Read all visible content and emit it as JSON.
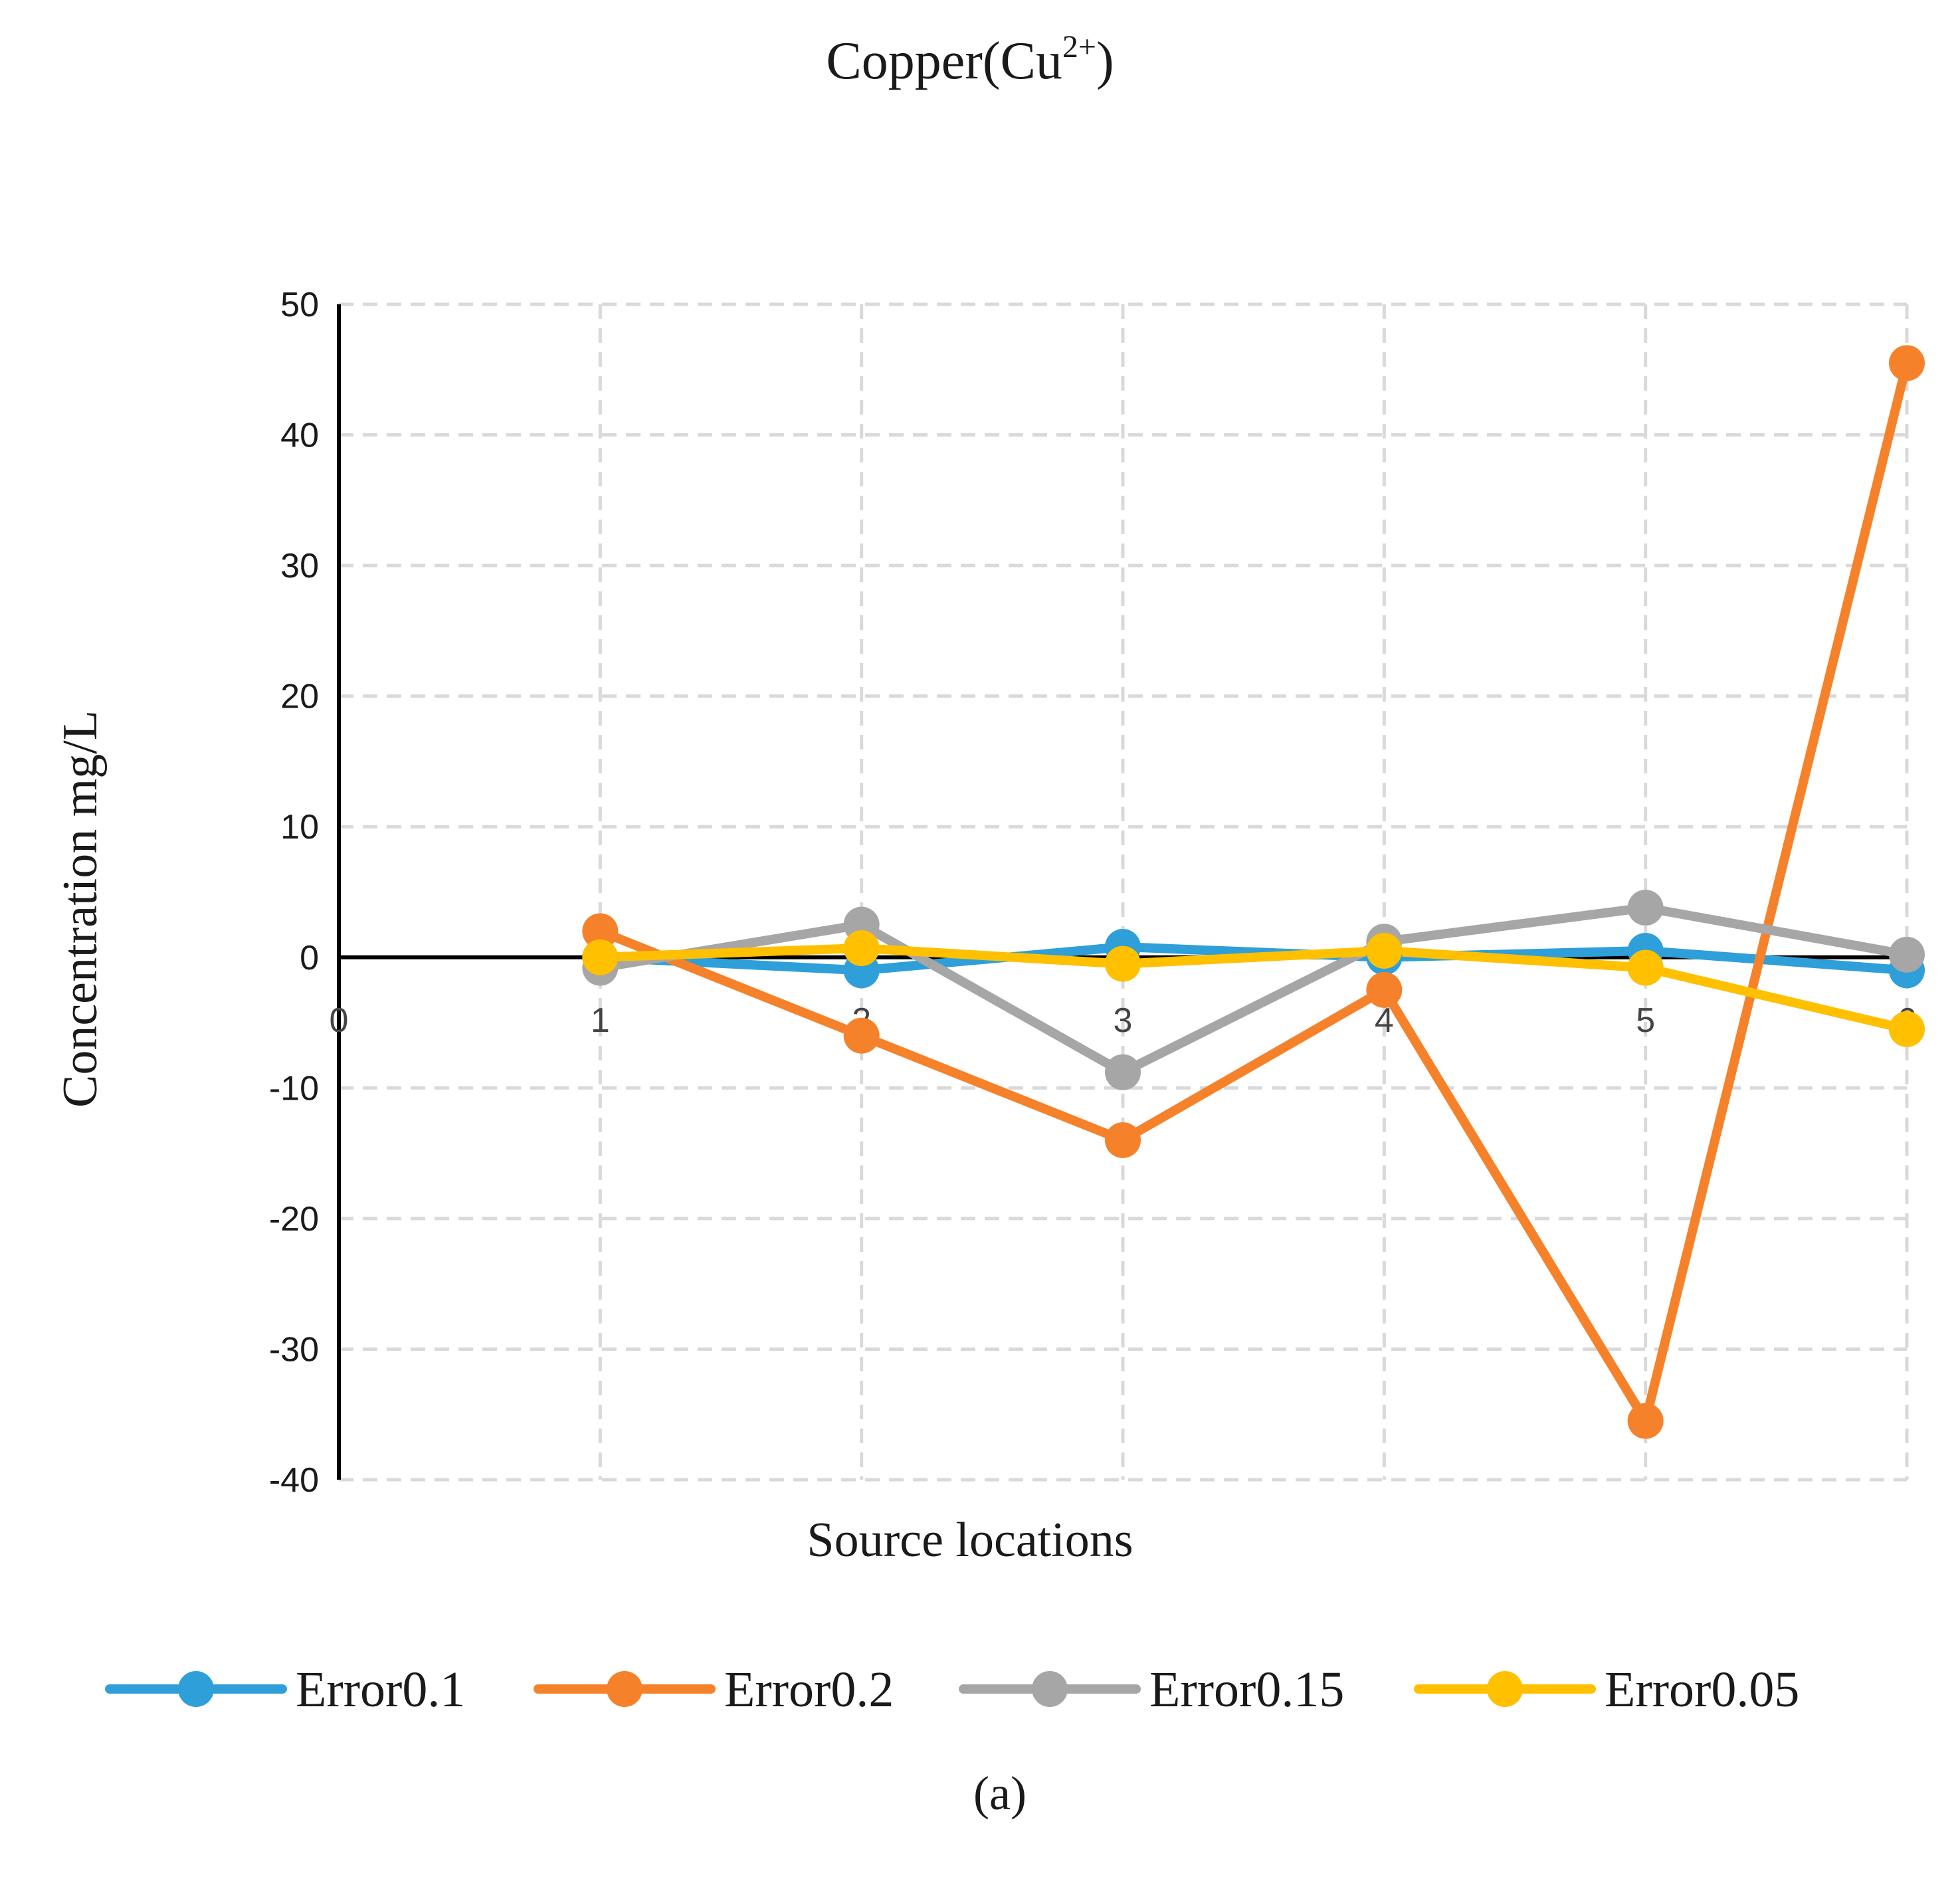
{
  "chart_data": {
    "type": "line",
    "title_main": "Copper(Cu",
    "title_sup": "2+",
    "title_close": ")",
    "xlabel": "Source locations",
    "ylabel": "Concentration mg/L",
    "caption": "(a)",
    "xlim": [
      0,
      6
    ],
    "ylim": [
      -40,
      50
    ],
    "grid": true,
    "legend_position": "bottom",
    "x_ticks": [
      0,
      1,
      2,
      3,
      4,
      5,
      6
    ],
    "y_ticks": [
      50,
      40,
      30,
      20,
      10,
      0,
      -10,
      -20,
      -30,
      -40
    ],
    "x": [
      1,
      2,
      3,
      4,
      5,
      6
    ],
    "series": [
      {
        "name": "Error0.1",
        "color": "#2e9fd8",
        "values": [
          0,
          -1,
          0.8,
          0,
          0.5,
          -1
        ]
      },
      {
        "name": "Error0.2",
        "color": "#f5822a",
        "values": [
          2,
          -6,
          -14,
          -2.5,
          -35.5,
          45.5
        ]
      },
      {
        "name": "Error0.15",
        "color": "#a6a6a6",
        "values": [
          -0.8,
          2.5,
          -8.8,
          1.2,
          3.8,
          0.2
        ]
      },
      {
        "name": "Error0.05",
        "color": "#ffc000",
        "values": [
          0,
          0.7,
          -0.5,
          0.5,
          -0.8,
          -5.5
        ]
      }
    ]
  }
}
